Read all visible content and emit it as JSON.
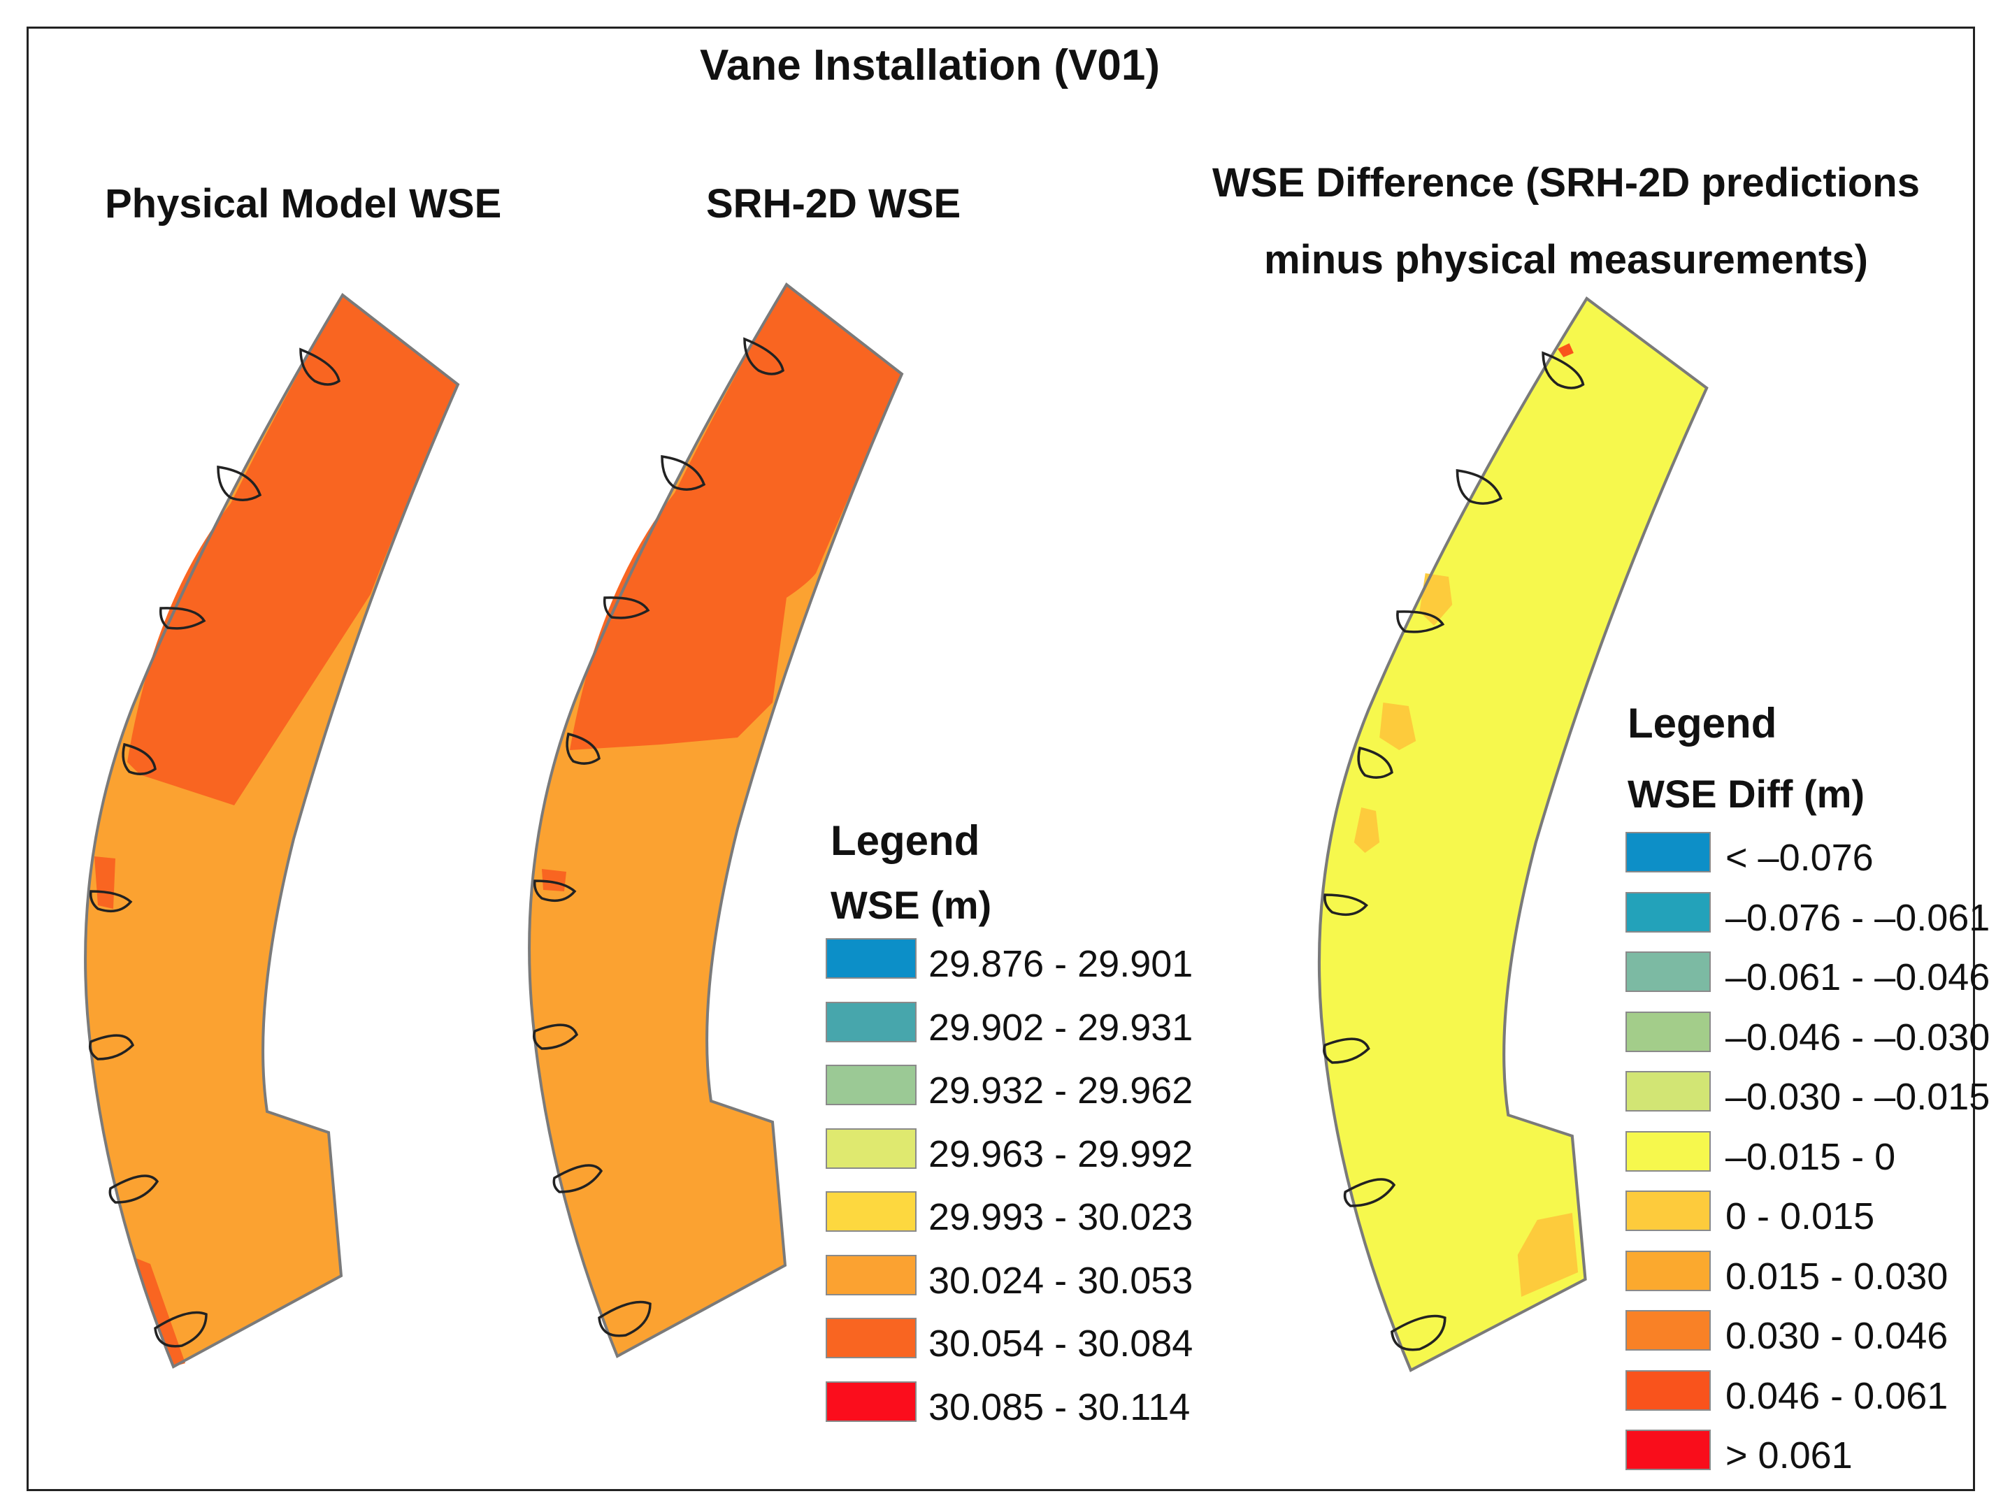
{
  "figure": {
    "title": "Vane Installation (V01)"
  },
  "panels": {
    "physical": {
      "title": "Physical Model WSE"
    },
    "srh": {
      "title": "SRH-2D WSE"
    },
    "difference": {
      "title_line1": "WSE Difference (SRH-2D predictions",
      "title_line2": "minus physical measurements)"
    }
  },
  "legend_wse": {
    "heading": "Legend",
    "field": "WSE (m)",
    "classes": [
      {
        "label": "29.876 - 29.901",
        "color": "#0c8fc8"
      },
      {
        "label": "29.902 - 29.931",
        "color": "#47a6ac"
      },
      {
        "label": "29.932 - 29.962",
        "color": "#9bc995"
      },
      {
        "label": "29.963 - 29.992",
        "color": "#dfe96f"
      },
      {
        "label": "29.993 - 30.023",
        "color": "#fdd83f"
      },
      {
        "label": "30.024 - 30.053",
        "color": "#fba231"
      },
      {
        "label": "30.054 - 30.084",
        "color": "#f96521"
      },
      {
        "label": "30.085 - 30.114",
        "color": "#fb0d1c"
      }
    ]
  },
  "legend_diff": {
    "heading": "Legend",
    "field": "WSE Diff (m)",
    "classes": [
      {
        "label": "< –0.076",
        "color": "#0d8fc7"
      },
      {
        "label": "–0.076 - –0.061",
        "color": "#23a2ba"
      },
      {
        "label": "–0.061 - –0.046",
        "color": "#7cbaa3"
      },
      {
        "label": "–0.046 - –0.030",
        "color": "#a3cd8a"
      },
      {
        "label": "–0.030 - –0.015",
        "color": "#d2e574"
      },
      {
        "label": "–0.015 - 0",
        "color": "#f6f84d"
      },
      {
        "label": "0 - 0.015",
        "color": "#fdcb3c"
      },
      {
        "label": "0.015 - 0.030",
        "color": "#fba92e"
      },
      {
        "label": "0.030 - 0.046",
        "color": "#f98126"
      },
      {
        "label": "0.046 - 0.061",
        "color": "#f9531c"
      },
      {
        "label": "> 0.061",
        "color": "#f90d1b"
      }
    ]
  }
}
